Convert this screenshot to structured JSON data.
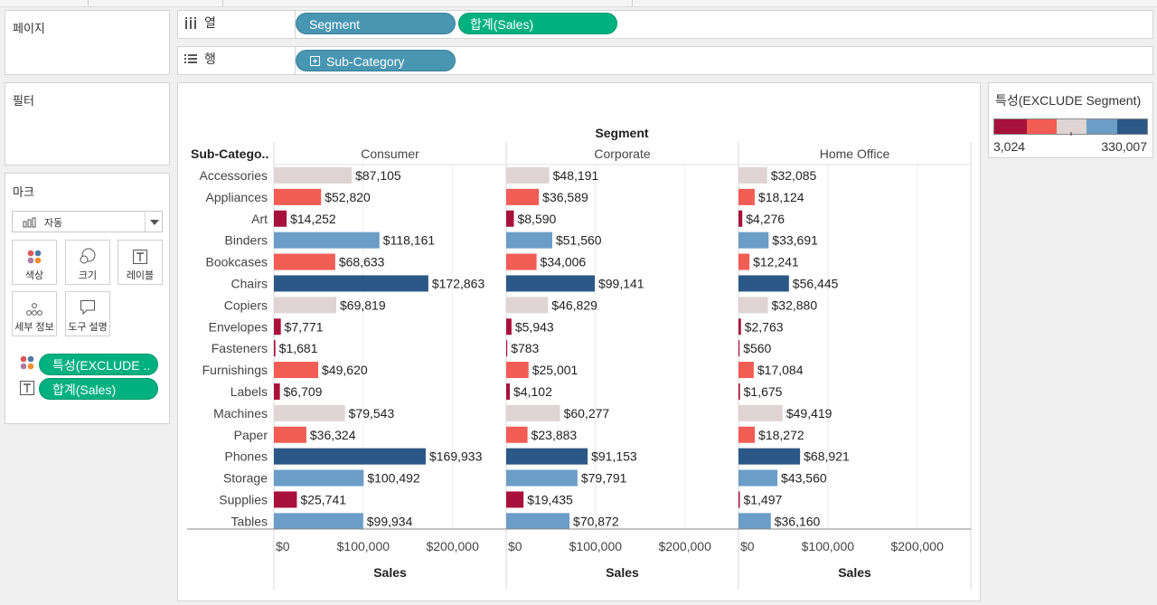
{
  "shelves": {
    "pages_label": "페이지",
    "filters_label": "필터",
    "columns_label": "열",
    "rows_label": "행",
    "columns_pills": [
      "Segment",
      "합계(Sales)"
    ],
    "rows_pills": [
      "Sub-Category"
    ]
  },
  "marks": {
    "title": "마크",
    "mark_type": "자동",
    "buttons": [
      "색상",
      "크기",
      "레이블",
      "세부 정보",
      "도구 설명"
    ],
    "fields": [
      "특성(EXCLUDE ..",
      "합계(Sales)"
    ]
  },
  "legend": {
    "title": "특성(EXCLUDE Segment)",
    "min": "3,024",
    "max": "330,007",
    "colors": [
      "#a8113b",
      "#f15d54",
      "#dfd4d3",
      "#6b9dc7",
      "#2b5886"
    ]
  },
  "chart_data": {
    "type": "bar",
    "orientation": "horizontal",
    "column_header": "Segment",
    "row_header": "Sub-Catego..",
    "xlabel": "Sales",
    "xlim": [
      0,
      260000
    ],
    "xticks": [
      0,
      100000,
      200000
    ],
    "xtick_labels": [
      "$0",
      "$100,000",
      "$200,000"
    ],
    "categories": [
      "Accessories",
      "Appliances",
      "Art",
      "Binders",
      "Bookcases",
      "Chairs",
      "Copiers",
      "Envelopes",
      "Fasteners",
      "Furnishings",
      "Labels",
      "Machines",
      "Paper",
      "Phones",
      "Storage",
      "Supplies",
      "Tables"
    ],
    "color_classes": [
      2,
      1,
      0,
      3,
      1,
      4,
      2,
      0,
      0,
      1,
      0,
      2,
      1,
      4,
      3,
      0,
      3
    ],
    "series": [
      {
        "name": "Consumer",
        "values": [
          87105,
          52820,
          14252,
          118161,
          68633,
          172863,
          69819,
          7771,
          1681,
          49620,
          6709,
          79543,
          36324,
          169933,
          100492,
          25741,
          99934
        ],
        "labels": [
          "$87,105",
          "$52,820",
          "$14,252",
          "$118,161",
          "$68,633",
          "$172,863",
          "$69,819",
          "$7,771",
          "$1,681",
          "$49,620",
          "$6,709",
          "$79,543",
          "$36,324",
          "$169,933",
          "$100,492",
          "$25,741",
          "$99,934"
        ]
      },
      {
        "name": "Corporate",
        "values": [
          48191,
          36589,
          8590,
          51560,
          34006,
          99141,
          46829,
          5943,
          783,
          25001,
          4102,
          60277,
          23883,
          91153,
          79791,
          19435,
          70872
        ],
        "labels": [
          "$48,191",
          "$36,589",
          "$8,590",
          "$51,560",
          "$34,006",
          "$99,141",
          "$46,829",
          "$5,943",
          "$783",
          "$25,001",
          "$4,102",
          "$60,277",
          "$23,883",
          "$91,153",
          "$79,791",
          "$19,435",
          "$70,872"
        ]
      },
      {
        "name": "Home Office",
        "values": [
          32085,
          18124,
          4276,
          33691,
          12241,
          56445,
          32880,
          2763,
          560,
          17084,
          1675,
          49419,
          18272,
          68921,
          43560,
          1497,
          36160
        ],
        "labels": [
          "$32,085",
          "$18,124",
          "$4,276",
          "$33,691",
          "$12,241",
          "$56,445",
          "$32,880",
          "$2,763",
          "$560",
          "$17,084",
          "$1,675",
          "$49,419",
          "$18,272",
          "$68,921",
          "$43,560",
          "$1,497",
          "$36,160"
        ]
      }
    ]
  }
}
